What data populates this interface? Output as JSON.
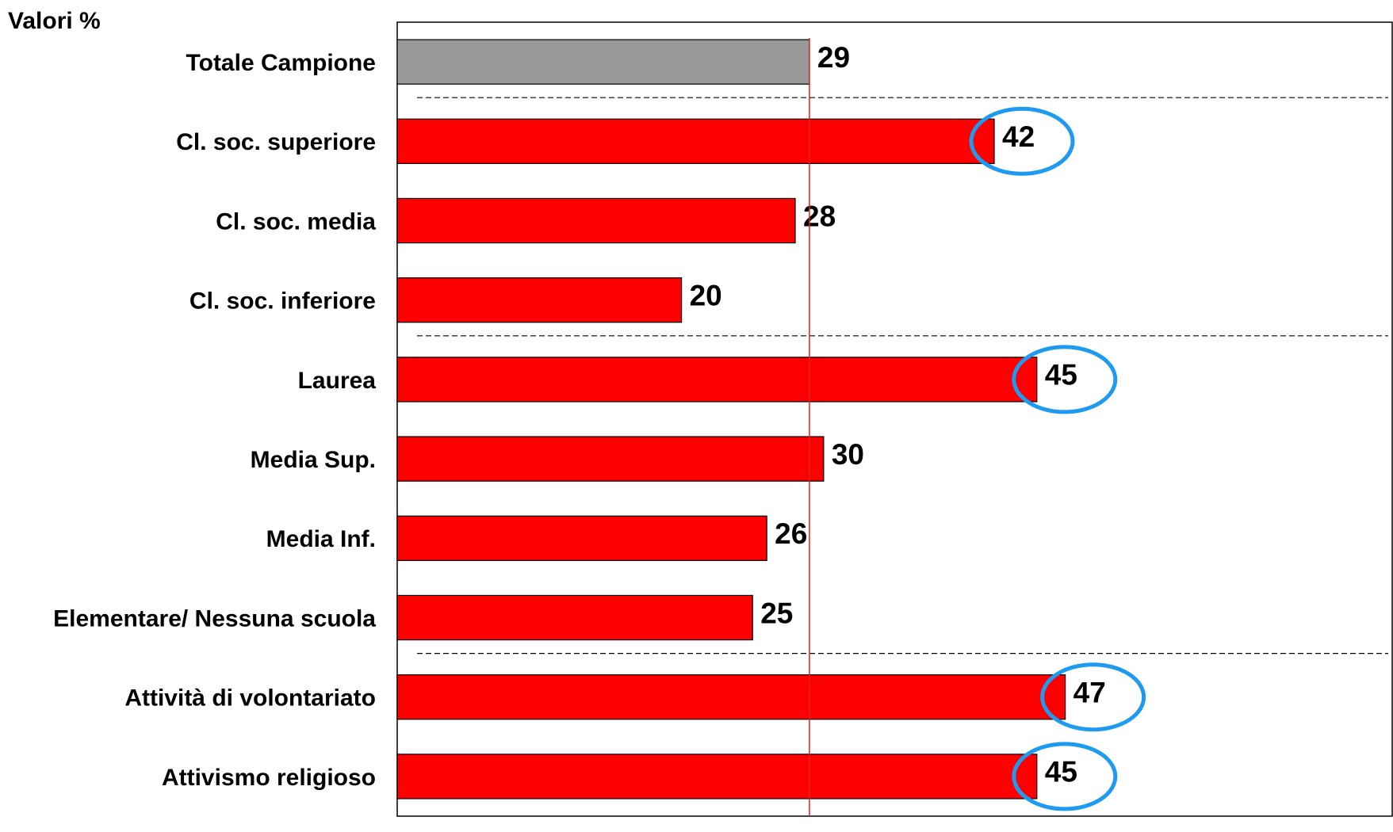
{
  "chart_data": {
    "type": "barh",
    "title": "Valori %",
    "categories": [
      "Totale Campione",
      "Cl. soc. superiore",
      "Cl. soc. media",
      "Cl. soc. inferiore",
      "Laurea",
      "Media Sup.",
      "Media Inf.",
      "Elementare/ Nessuna scuola",
      "Attività di volontariato",
      "Attivismo religioso"
    ],
    "values": [
      29,
      42,
      28,
      20,
      45,
      30,
      26,
      25,
      47,
      45
    ],
    "colors": [
      "#999999",
      "#ff0000",
      "#ff0000",
      "#ff0000",
      "#ff0000",
      "#ff0000",
      "#ff0000",
      "#ff0000",
      "#ff0000",
      "#ff0000"
    ],
    "xlim": [
      0,
      70
    ],
    "reference_line_at_category": 0,
    "reference_line_color": "#e02020",
    "separators_after": [
      0,
      3,
      7
    ],
    "highlighted": [
      1,
      4,
      8,
      9
    ],
    "highlight_color": "#1e9bf0"
  }
}
